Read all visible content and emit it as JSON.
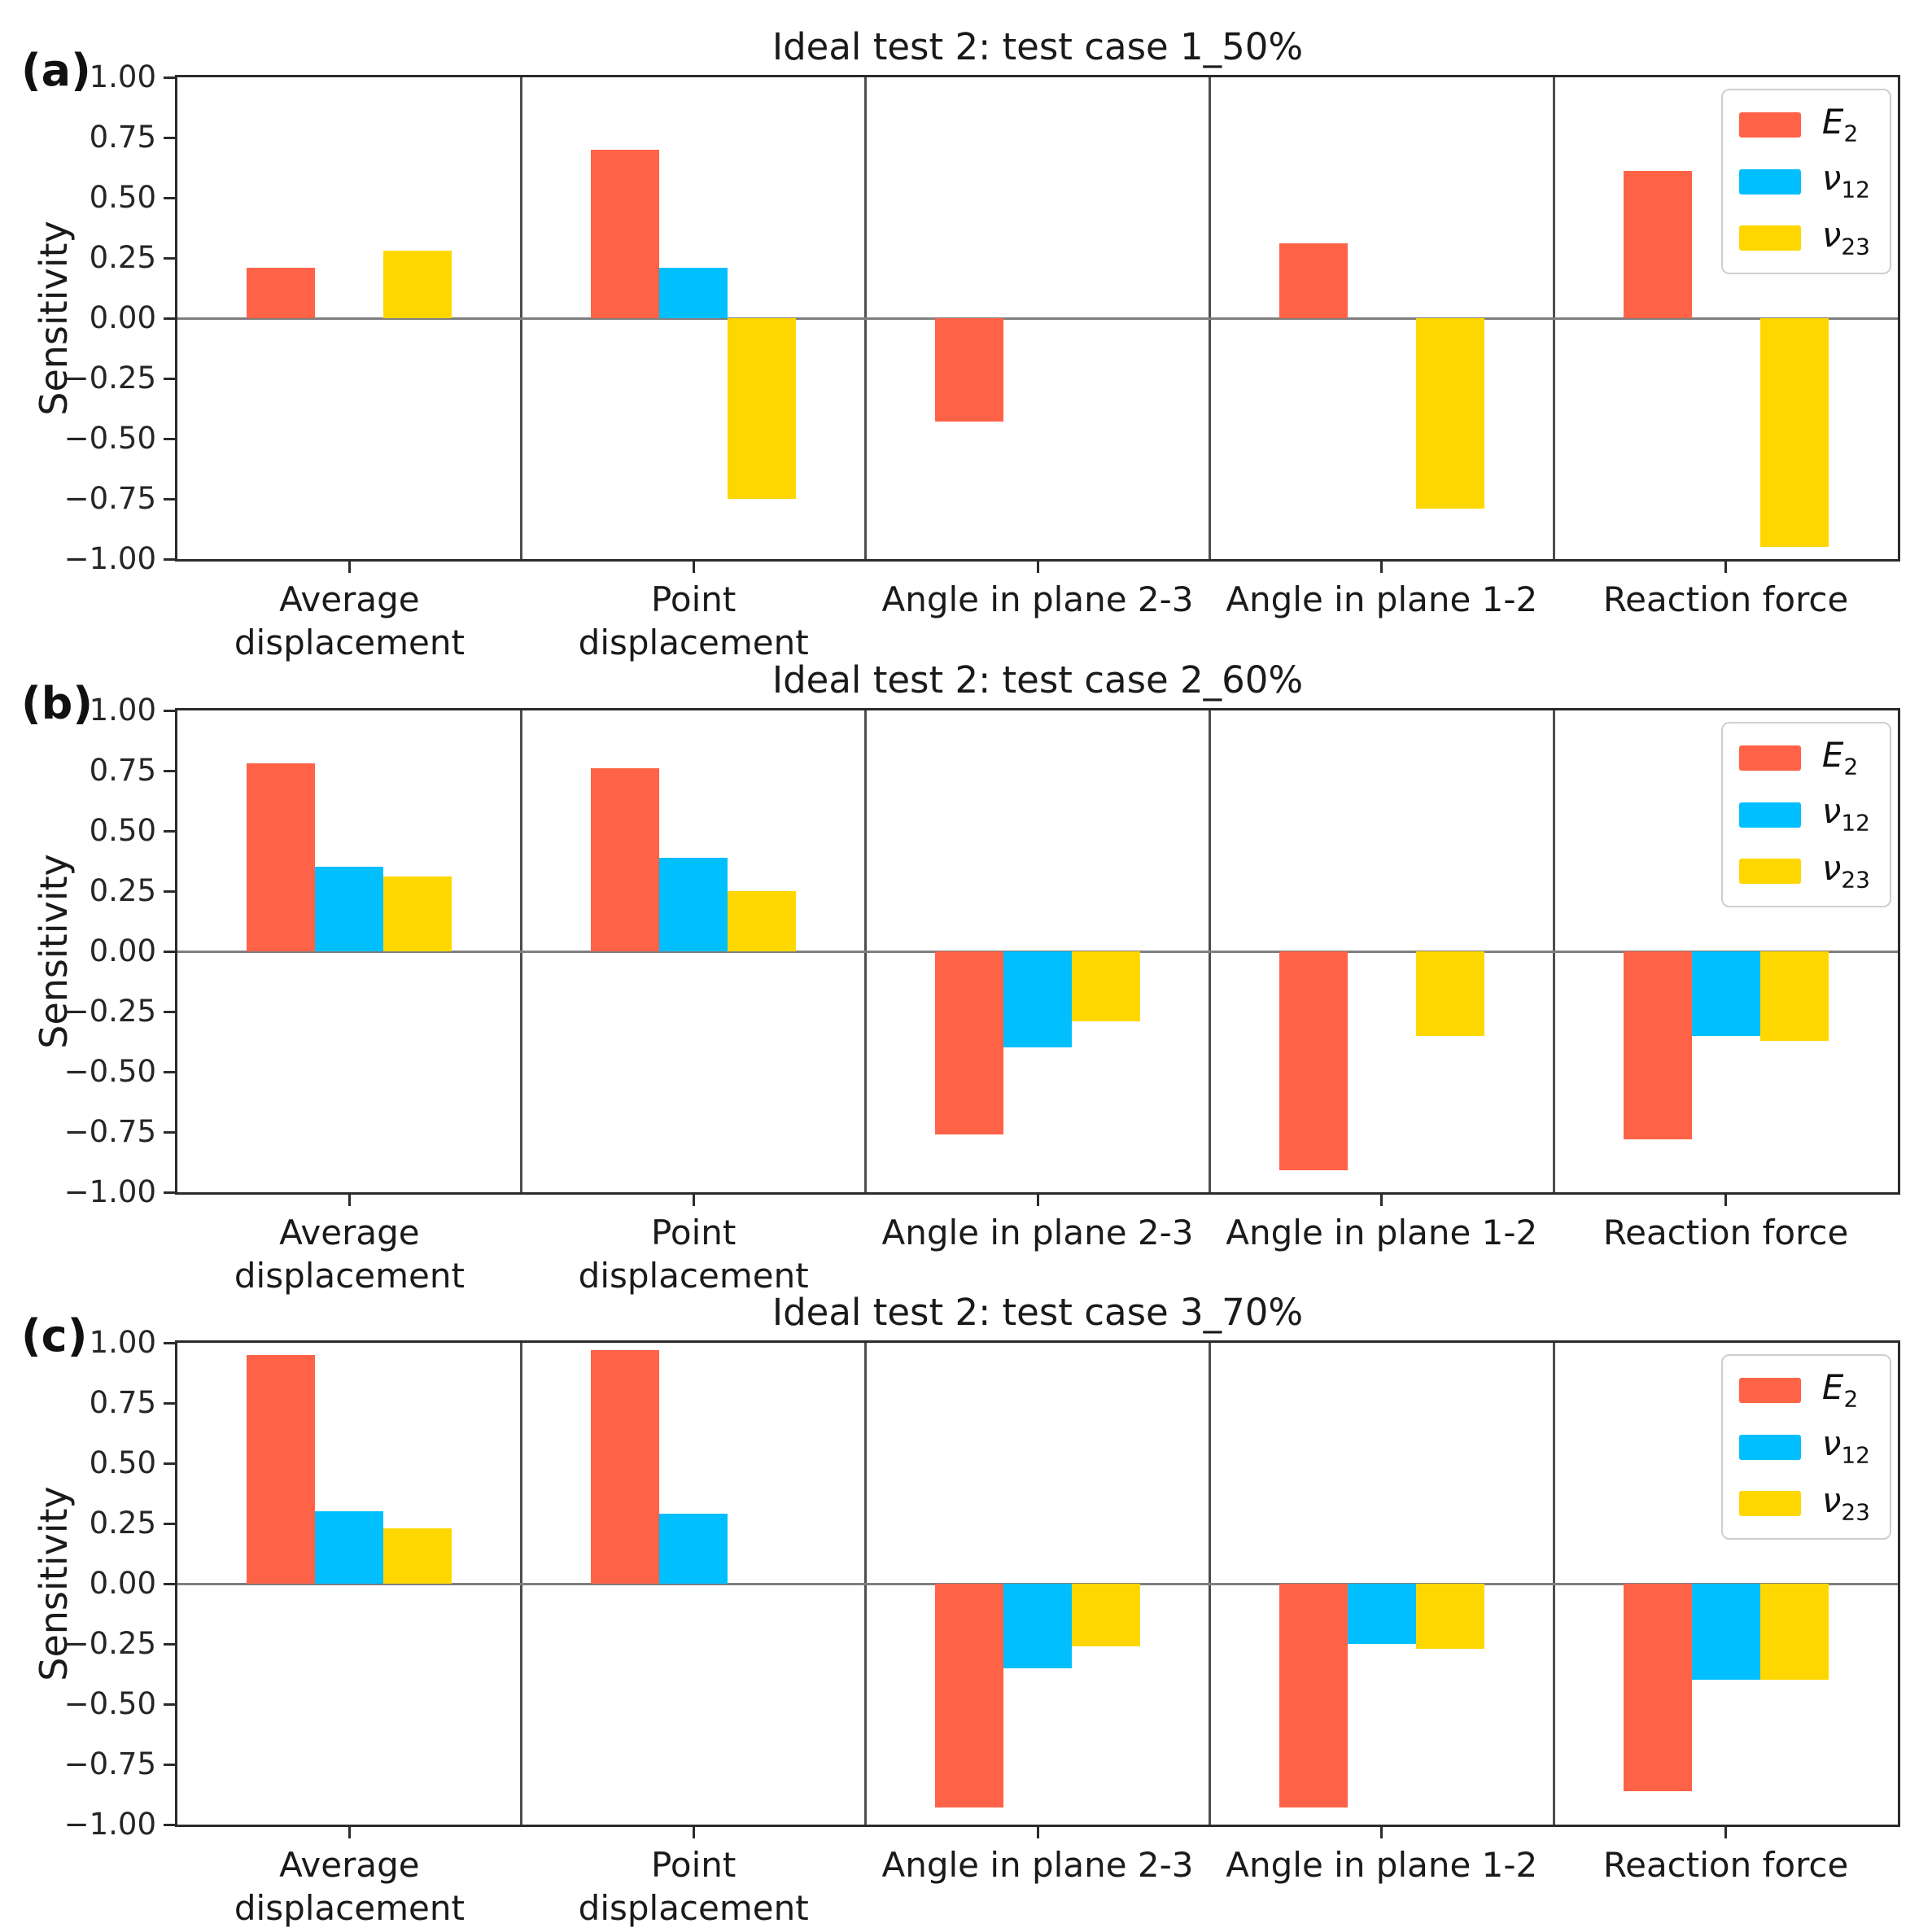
{
  "figure": {
    "background": "#ffffff",
    "ylabel": "Sensitivity",
    "y_tick_labels": [
      "1.00",
      "0.75",
      "0.50",
      "0.25",
      "0.00",
      "−0.25",
      "−0.50",
      "−0.75",
      "−1.00"
    ],
    "categories": [
      "Average\ndisplacement",
      "Point\ndisplacement",
      "Angle in plane 2-3",
      "Angle in plane 1-2",
      "Reaction force"
    ],
    "legend": {
      "items": [
        {
          "id": "E2",
          "base": "E",
          "sub": "2",
          "color": "#ff6347"
        },
        {
          "id": "nu12",
          "base": "ν",
          "sub": "12",
          "color": "#00bfff"
        },
        {
          "id": "nu23",
          "base": "ν",
          "sub": "23",
          "color": "#ffd700"
        }
      ]
    }
  },
  "chart_data": [
    {
      "type": "bar",
      "panel_label": "(a)",
      "title": "Ideal test 2: test case 1_50%",
      "ylabel": "Sensitivity",
      "ylim": [
        -1.0,
        1.0
      ],
      "y_tick_step": 0.25,
      "legend_position": "upper right",
      "categories": [
        "Average\ndisplacement",
        "Point\ndisplacement",
        "Angle in plane 2-3",
        "Angle in plane 1-2",
        "Reaction force"
      ],
      "series": [
        {
          "name": "E₂",
          "color": "#ff6347",
          "values": [
            0.21,
            0.7,
            -0.43,
            0.31,
            0.61
          ]
        },
        {
          "name": "ν₁₂",
          "color": "#00bfff",
          "values": [
            0.0,
            0.21,
            0.0,
            0.0,
            0.0
          ]
        },
        {
          "name": "ν₂₃",
          "color": "#ffd700",
          "values": [
            0.28,
            -0.75,
            0.0,
            -0.79,
            -0.95
          ]
        }
      ]
    },
    {
      "type": "bar",
      "panel_label": "(b)",
      "title": "Ideal test 2: test case 2_60%",
      "ylabel": "Sensitivity",
      "ylim": [
        -1.0,
        1.0
      ],
      "y_tick_step": 0.25,
      "legend_position": "upper right",
      "categories": [
        "Average\ndisplacement",
        "Point\ndisplacement",
        "Angle in plane 2-3",
        "Angle in plane 1-2",
        "Reaction force"
      ],
      "series": [
        {
          "name": "E₂",
          "color": "#ff6347",
          "values": [
            0.78,
            0.76,
            -0.76,
            -0.91,
            -0.78
          ]
        },
        {
          "name": "ν₁₂",
          "color": "#00bfff",
          "values": [
            0.35,
            0.39,
            -0.4,
            0.0,
            -0.35
          ]
        },
        {
          "name": "ν₂₃",
          "color": "#ffd700",
          "values": [
            0.31,
            0.25,
            -0.29,
            -0.35,
            -0.37
          ]
        }
      ]
    },
    {
      "type": "bar",
      "panel_label": "(c)",
      "title": "Ideal test 2: test case 3_70%",
      "ylabel": "Sensitivity",
      "ylim": [
        -1.0,
        1.0
      ],
      "y_tick_step": 0.25,
      "legend_position": "upper right",
      "categories": [
        "Average\ndisplacement",
        "Point\ndisplacement",
        "Angle in plane 2-3",
        "Angle in plane 1-2",
        "Reaction force"
      ],
      "series": [
        {
          "name": "E₂",
          "color": "#ff6347",
          "values": [
            0.95,
            0.97,
            -0.93,
            -0.93,
            -0.86
          ]
        },
        {
          "name": "ν₁₂",
          "color": "#00bfff",
          "values": [
            0.3,
            0.29,
            -0.35,
            -0.25,
            -0.4
          ]
        },
        {
          "name": "ν₂₃",
          "color": "#ffd700",
          "values": [
            0.23,
            0.0,
            -0.26,
            -0.27,
            -0.4
          ]
        }
      ]
    }
  ]
}
